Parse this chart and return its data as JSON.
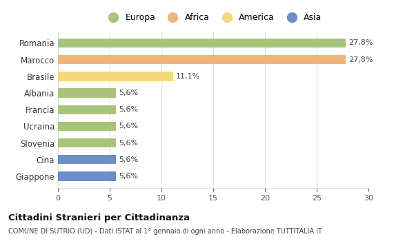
{
  "categories": [
    "Giappone",
    "Cina",
    "Slovenia",
    "Ucraina",
    "Francia",
    "Albania",
    "Brasile",
    "Marocco",
    "Romania"
  ],
  "values": [
    5.6,
    5.6,
    5.6,
    5.6,
    5.6,
    5.6,
    11.1,
    27.8,
    27.8
  ],
  "colors": [
    "#6b8fc9",
    "#6b8fc9",
    "#a8c47a",
    "#a8c47a",
    "#a8c47a",
    "#a8c47a",
    "#f5d87a",
    "#f0b57a",
    "#a8c47a"
  ],
  "labels": [
    "5,6%",
    "5,6%",
    "5,6%",
    "5,6%",
    "5,6%",
    "5,6%",
    "11,1%",
    "27,8%",
    "27,8%"
  ],
  "xlim": [
    0,
    30
  ],
  "xticks": [
    0,
    5,
    10,
    15,
    20,
    25,
    30
  ],
  "title": "Cittadini Stranieri per Cittadinanza",
  "subtitle": "COMUNE DI SUTRIO (UD) - Dati ISTAT al 1° gennaio di ogni anno - Elaborazione TUTTITALIA.IT",
  "legend_labels": [
    "Europa",
    "Africa",
    "America",
    "Asia"
  ],
  "legend_colors": [
    "#a8c47a",
    "#f0b57a",
    "#f5d87a",
    "#6b8fc9"
  ],
  "background_color": "#ffffff",
  "grid_color": "#d8e4d8"
}
